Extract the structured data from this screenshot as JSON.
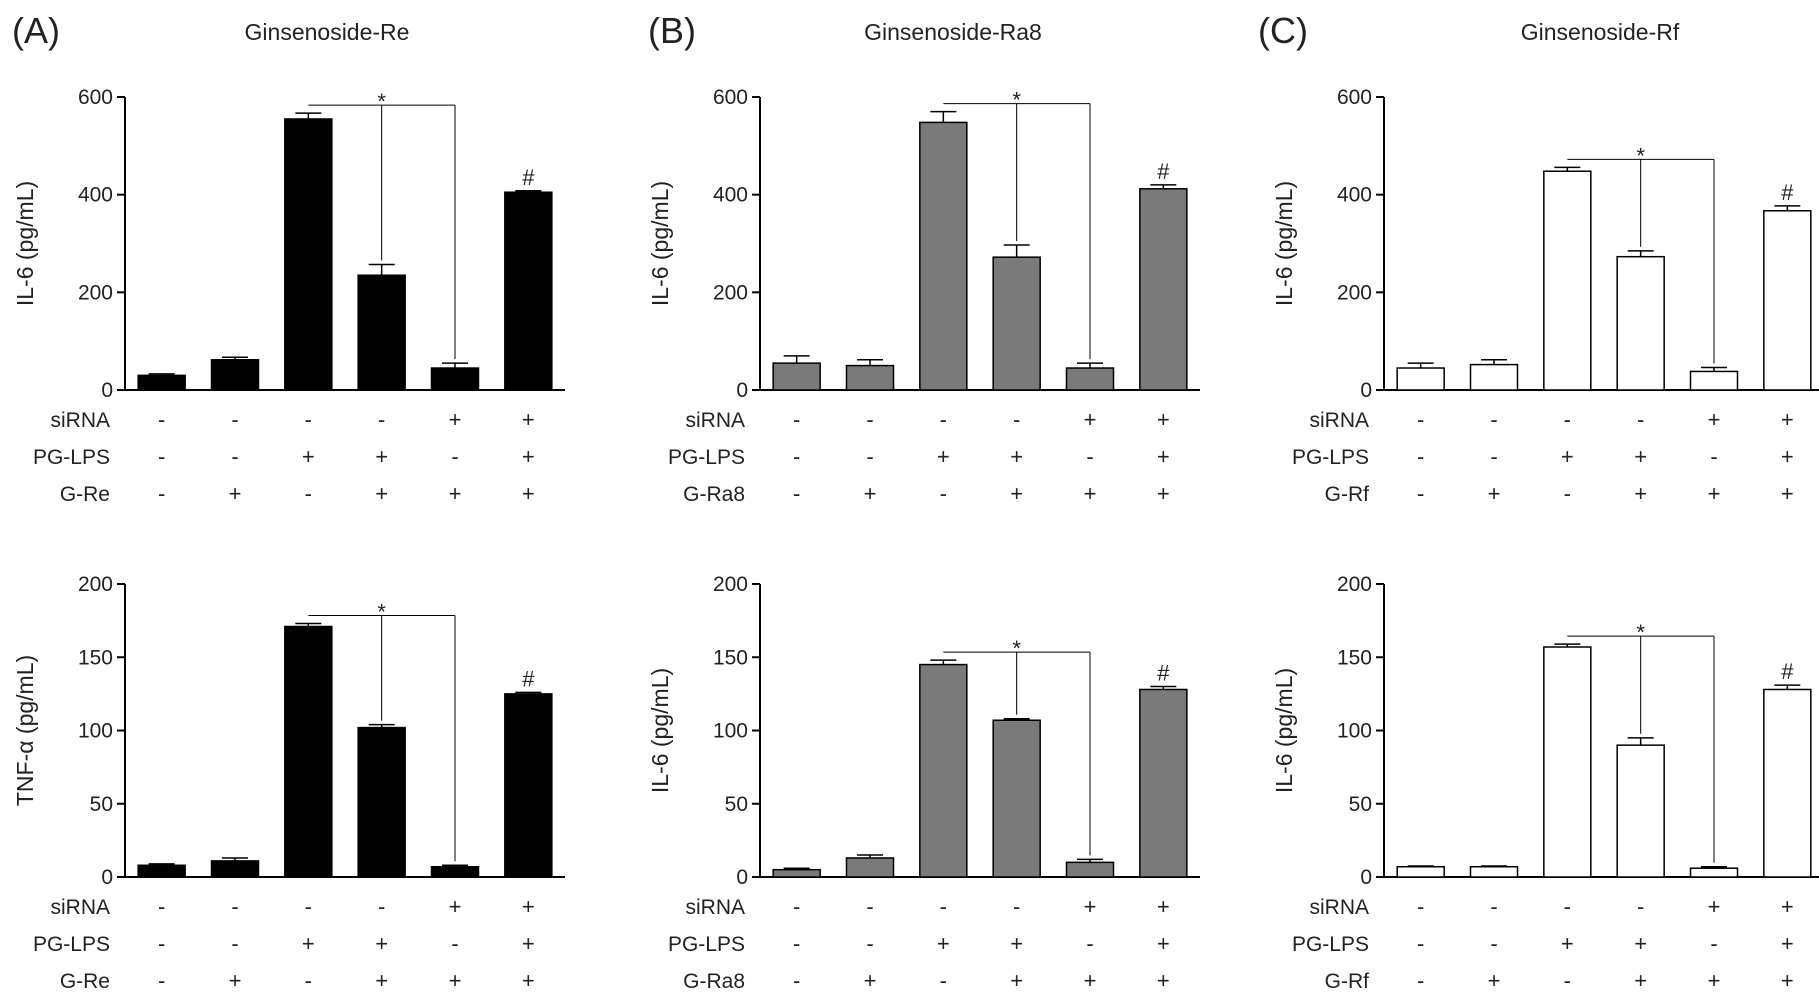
{
  "panels": [
    {
      "letter": "(A)",
      "title": "Ginsenoside-Re",
      "charts": [
        {
          "type": "bar",
          "ylabel": "IL-6 (pg/mL)",
          "ylim": [
            0,
            600
          ],
          "yticks": [
            0,
            200,
            400,
            600
          ],
          "values": [
            30,
            62,
            555,
            235,
            45,
            405
          ],
          "errors": [
            3,
            5,
            12,
            22,
            10,
            3
          ],
          "bar_color": "#000000",
          "rows": [
            {
              "label": "siRNA",
              "signs": [
                "-",
                "-",
                "-",
                "-",
                "+",
                "+"
              ]
            },
            {
              "label": "PG-LPS",
              "signs": [
                "-",
                "-",
                "+",
                "+",
                "-",
                "+"
              ]
            },
            {
              "label": "G-Re",
              "signs": [
                "-",
                "+",
                "-",
                "+",
                "+",
                "+"
              ]
            }
          ],
          "significance": {
            "from": 2,
            "to": [
              3,
              4
            ],
            "symbol": "*"
          },
          "hash": {
            "bar": 5,
            "symbol": "#"
          }
        },
        {
          "type": "bar",
          "ylabel": "TNF-α (pg/mL)",
          "ylim": [
            0,
            200
          ],
          "yticks": [
            0,
            50,
            100,
            150,
            200
          ],
          "values": [
            8,
            11,
            171,
            102,
            7,
            125
          ],
          "errors": [
            1,
            2,
            2,
            2,
            1,
            1
          ],
          "bar_color": "#000000",
          "rows": [
            {
              "label": "siRNA",
              "signs": [
                "-",
                "-",
                "-",
                "-",
                "+",
                "+"
              ]
            },
            {
              "label": "PG-LPS",
              "signs": [
                "-",
                "-",
                "+",
                "+",
                "-",
                "+"
              ]
            },
            {
              "label": "G-Re",
              "signs": [
                "-",
                "+",
                "-",
                "+",
                "+",
                "+"
              ]
            }
          ],
          "significance": {
            "from": 2,
            "to": [
              3,
              4
            ],
            "symbol": "*"
          },
          "hash": {
            "bar": 5,
            "symbol": "#"
          }
        }
      ]
    },
    {
      "letter": "(B)",
      "title": "Ginsenoside-Ra8",
      "charts": [
        {
          "type": "bar",
          "ylabel": "IL-6 (pg/mL)",
          "ylim": [
            0,
            600
          ],
          "yticks": [
            0,
            200,
            400,
            600
          ],
          "values": [
            55,
            50,
            548,
            272,
            45,
            412
          ],
          "errors": [
            15,
            12,
            22,
            25,
            10,
            8
          ],
          "bar_color": "#7a7a7a",
          "rows": [
            {
              "label": "siRNA",
              "signs": [
                "-",
                "-",
                "-",
                "-",
                "+",
                "+"
              ]
            },
            {
              "label": "PG-LPS",
              "signs": [
                "-",
                "-",
                "+",
                "+",
                "-",
                "+"
              ]
            },
            {
              "label": "G-Ra8",
              "signs": [
                "-",
                "+",
                "-",
                "+",
                "+",
                "+"
              ]
            }
          ],
          "significance": {
            "from": 2,
            "to": [
              3,
              4
            ],
            "symbol": "*"
          },
          "hash": {
            "bar": 5,
            "symbol": "#"
          }
        },
        {
          "type": "bar",
          "ylabel": "IL-6 (pg/mL)",
          "ylim": [
            0,
            200
          ],
          "yticks": [
            0,
            50,
            100,
            150,
            200
          ],
          "values": [
            5,
            13,
            145,
            107,
            10,
            128
          ],
          "errors": [
            1,
            2,
            3,
            1,
            2,
            2
          ],
          "bar_color": "#7a7a7a",
          "rows": [
            {
              "label": "siRNA",
              "signs": [
                "-",
                "-",
                "-",
                "-",
                "+",
                "+"
              ]
            },
            {
              "label": "PG-LPS",
              "signs": [
                "-",
                "-",
                "+",
                "+",
                "-",
                "+"
              ]
            },
            {
              "label": "G-Ra8",
              "signs": [
                "-",
                "+",
                "-",
                "+",
                "+",
                "+"
              ]
            }
          ],
          "significance": {
            "from": 2,
            "to": [
              3,
              4
            ],
            "symbol": "*"
          },
          "hash": {
            "bar": 5,
            "symbol": "#"
          }
        }
      ]
    },
    {
      "letter": "(C)",
      "title": "Ginsenoside-Rf",
      "charts": [
        {
          "type": "bar",
          "ylabel": "IL-6 (pg/mL)",
          "ylim": [
            0,
            600
          ],
          "yticks": [
            0,
            200,
            400,
            600
          ],
          "values": [
            45,
            52,
            448,
            273,
            38,
            367
          ],
          "errors": [
            10,
            10,
            8,
            12,
            8,
            10
          ],
          "bar_color": "#ffffff",
          "rows": [
            {
              "label": "siRNA",
              "signs": [
                "-",
                "-",
                "-",
                "-",
                "+",
                "+"
              ]
            },
            {
              "label": "PG-LPS",
              "signs": [
                "-",
                "-",
                "+",
                "+",
                "-",
                "+"
              ]
            },
            {
              "label": "G-Rf",
              "signs": [
                "-",
                "+",
                "-",
                "+",
                "+",
                "+"
              ]
            }
          ],
          "significance": {
            "from": 2,
            "to": [
              3,
              4
            ],
            "symbol": "*"
          },
          "hash": {
            "bar": 5,
            "symbol": "#"
          }
        },
        {
          "type": "bar",
          "ylabel": "IL-6 (pg/mL)",
          "ylim": [
            0,
            200
          ],
          "yticks": [
            0,
            50,
            100,
            150,
            200
          ],
          "values": [
            7,
            7,
            157,
            90,
            6,
            128
          ],
          "errors": [
            0.5,
            0.5,
            2,
            5,
            1,
            3
          ],
          "bar_color": "#ffffff",
          "rows": [
            {
              "label": "siRNA",
              "signs": [
                "-",
                "-",
                "-",
                "-",
                "+",
                "+"
              ]
            },
            {
              "label": "PG-LPS",
              "signs": [
                "-",
                "-",
                "+",
                "+",
                "-",
                "+"
              ]
            },
            {
              "label": "G-Rf",
              "signs": [
                "-",
                "+",
                "-",
                "+",
                "+",
                "+"
              ]
            }
          ],
          "significance": {
            "from": 2,
            "to": [
              3,
              4
            ],
            "symbol": "*"
          },
          "hash": {
            "bar": 5,
            "symbol": "#"
          }
        }
      ]
    }
  ]
}
